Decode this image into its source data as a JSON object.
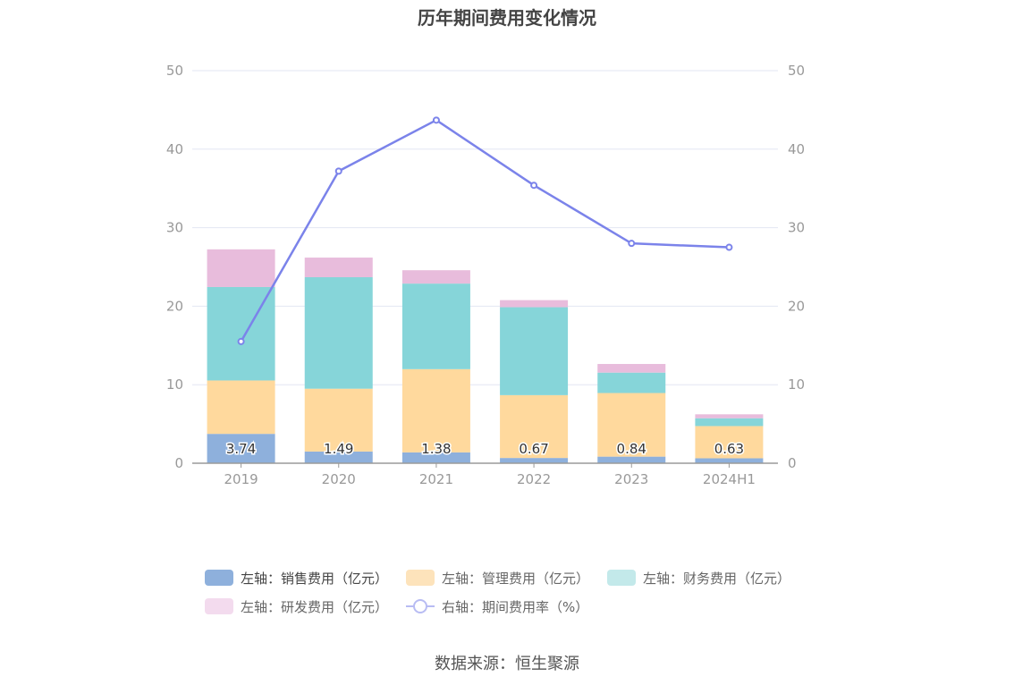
{
  "chart_data": {
    "type": "bar",
    "title": "历年期间费用变化情况",
    "categories": [
      "2019",
      "2020",
      "2021",
      "2022",
      "2023",
      "2024H1"
    ],
    "series": [
      {
        "name": "左轴：销售费用（亿元）",
        "kind": "bar",
        "color": "#8eb0dc",
        "values": [
          3.74,
          1.49,
          1.38,
          0.67,
          0.84,
          0.63
        ],
        "labels": [
          "3.74",
          "1.49",
          "1.38",
          "0.67",
          "0.84",
          "0.63"
        ]
      },
      {
        "name": "左轴：管理费用（亿元）",
        "kind": "bar",
        "color": "#ffd99d",
        "values": [
          6.8,
          8.0,
          10.6,
          8.0,
          8.1,
          4.1
        ]
      },
      {
        "name": "左轴：财务费用（亿元）",
        "kind": "bar",
        "color": "#86d5d9",
        "values": [
          11.9,
          14.2,
          10.9,
          11.2,
          2.6,
          1.0
        ]
      },
      {
        "name": "左轴：研发费用（亿元）",
        "kind": "bar",
        "color": "#e8bcdc",
        "values": [
          4.8,
          2.5,
          1.7,
          0.9,
          1.1,
          0.5
        ]
      },
      {
        "name": "右轴：期间费用率（%）",
        "kind": "line",
        "color": "#7b83ea",
        "values": [
          15.5,
          37.2,
          43.7,
          35.4,
          28.0,
          27.5
        ]
      }
    ],
    "yleft": {
      "min": 0,
      "max": 50,
      "ticks": [
        "0",
        "10",
        "20",
        "30",
        "40",
        "50"
      ]
    },
    "yright": {
      "min": 0,
      "max": 50,
      "ticks": [
        "0",
        "10",
        "20",
        "30",
        "40",
        "50"
      ]
    },
    "grid": true,
    "legend_position": "bottom"
  },
  "legend": {
    "sales": "左轴：销售费用（亿元）",
    "admin": "左轴：管理费用（亿元）",
    "finance": "左轴：财务费用（亿元）",
    "rd": "左轴：研发费用（亿元）",
    "rate": "右轴：期间费用率（%）"
  },
  "source": "数据来源：恒生聚源"
}
